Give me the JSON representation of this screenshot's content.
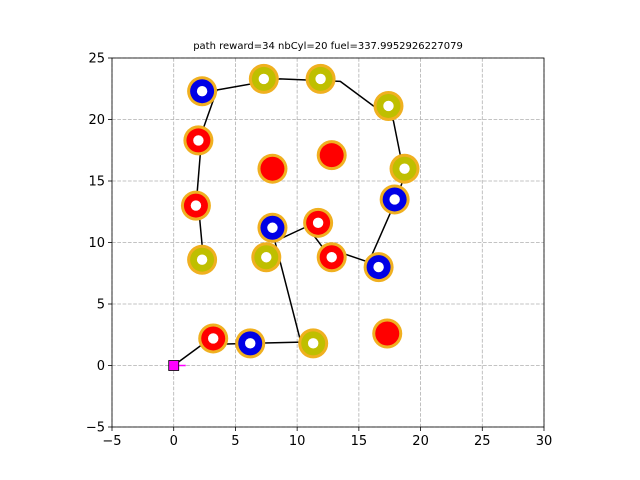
{
  "chart_data": {
    "type": "scatter",
    "title": "path reward=34 nbCyl=20 fuel=337.9952926227079",
    "xlabel": "",
    "ylabel": "",
    "xlim": [
      -5,
      30
    ],
    "ylim": [
      -5,
      25
    ],
    "x_ticks": [
      -5,
      0,
      5,
      10,
      15,
      20,
      25,
      30
    ],
    "y_ticks": [
      -5,
      0,
      5,
      10,
      15,
      20,
      25
    ],
    "grid": true,
    "colors": {
      "ring": "#f0b020",
      "red": "#ff0000",
      "blue": "#0000e6",
      "olive": "#bfbf00",
      "path": "#000000",
      "start_marker": "#ff00ff",
      "visited_dot": "#ffffff"
    },
    "start": {
      "x": 0,
      "y": 0
    },
    "cylinders": [
      {
        "x": 2.3,
        "y": 22.3,
        "color": "blue",
        "visited": true
      },
      {
        "x": 7.3,
        "y": 23.3,
        "color": "olive",
        "visited": true
      },
      {
        "x": 11.9,
        "y": 23.3,
        "color": "olive",
        "visited": true
      },
      {
        "x": 17.4,
        "y": 21.1,
        "color": "olive",
        "visited": true
      },
      {
        "x": 2.0,
        "y": 18.3,
        "color": "red",
        "visited": true
      },
      {
        "x": 8.0,
        "y": 16.0,
        "color": "red",
        "visited": false
      },
      {
        "x": 12.8,
        "y": 17.1,
        "color": "red",
        "visited": false
      },
      {
        "x": 18.7,
        "y": 16.0,
        "color": "olive",
        "visited": true
      },
      {
        "x": 1.8,
        "y": 13.0,
        "color": "red",
        "visited": true
      },
      {
        "x": 17.9,
        "y": 13.5,
        "color": "blue",
        "visited": true
      },
      {
        "x": 8.0,
        "y": 11.2,
        "color": "blue",
        "visited": true
      },
      {
        "x": 11.7,
        "y": 11.6,
        "color": "red",
        "visited": true
      },
      {
        "x": 2.3,
        "y": 8.6,
        "color": "olive",
        "visited": true
      },
      {
        "x": 7.5,
        "y": 8.8,
        "color": "olive",
        "visited": true
      },
      {
        "x": 12.8,
        "y": 8.8,
        "color": "red",
        "visited": true
      },
      {
        "x": 16.6,
        "y": 8.0,
        "color": "blue",
        "visited": true
      },
      {
        "x": 3.2,
        "y": 2.2,
        "color": "red",
        "visited": true
      },
      {
        "x": 6.2,
        "y": 1.8,
        "color": "blue",
        "visited": true
      },
      {
        "x": 11.3,
        "y": 1.8,
        "color": "olive",
        "visited": true
      },
      {
        "x": 17.3,
        "y": 2.6,
        "color": "red",
        "visited": false
      }
    ],
    "path": [
      [
        0,
        0
      ],
      [
        2.3,
        1.7
      ],
      [
        6.2,
        1.8
      ],
      [
        10.3,
        1.9
      ],
      [
        8.2,
        10.1
      ],
      [
        10.8,
        11.3
      ],
      [
        12.0,
        9.7
      ],
      [
        15.8,
        8.4
      ],
      [
        17.9,
        13.2
      ],
      [
        18.7,
        15.4
      ],
      [
        17.8,
        19.9
      ],
      [
        13.5,
        23.1
      ],
      [
        8.6,
        23.3
      ],
      [
        3.5,
        22.4
      ],
      [
        2.3,
        19.0
      ],
      [
        1.9,
        14.1
      ],
      [
        2.3,
        9.8
      ]
    ]
  }
}
